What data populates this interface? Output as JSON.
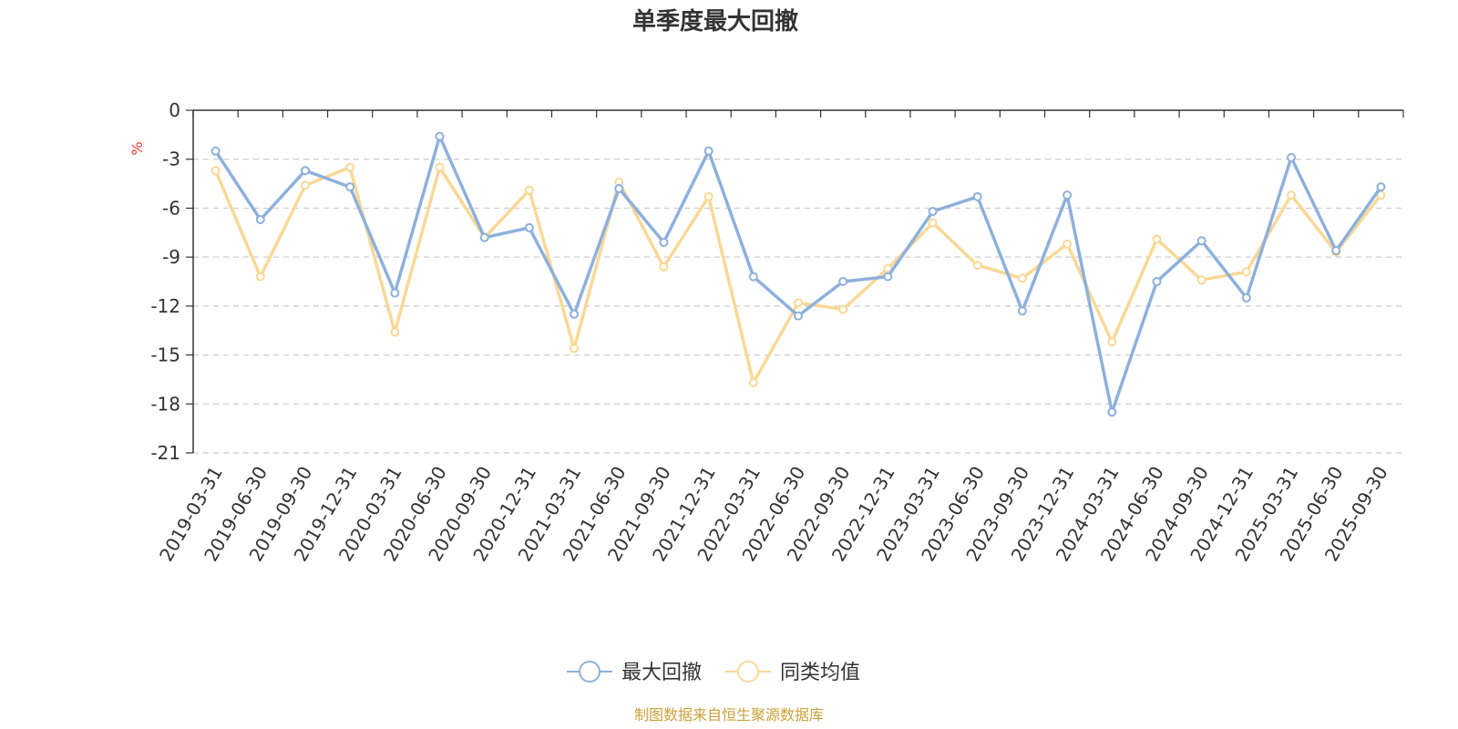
{
  "chart_data": {
    "type": "line",
    "title": "单季度最大回撤",
    "unit": "%",
    "ylim": [
      -21,
      0
    ],
    "yticks": [
      0,
      -3,
      -6,
      -9,
      -12,
      -15,
      -18,
      -21
    ],
    "grid": true,
    "legend_position": "bottom",
    "categories": [
      "2019-03-31",
      "2019-06-30",
      "2019-09-30",
      "2019-12-31",
      "2020-03-31",
      "2020-06-30",
      "2020-09-30",
      "2020-12-31",
      "2021-03-31",
      "2021-06-30",
      "2021-09-30",
      "2021-12-31",
      "2022-03-31",
      "2022-06-30",
      "2022-09-30",
      "2022-12-31",
      "2023-03-31",
      "2023-06-30",
      "2023-09-30",
      "2023-12-31",
      "2024-03-31",
      "2024-06-30",
      "2024-09-30",
      "2024-12-31",
      "2025-03-31",
      "2025-06-30",
      "2025-09-30"
    ],
    "series": [
      {
        "name": "最大回撤",
        "color": "#8eb0dc",
        "values": [
          -2.5,
          -6.7,
          -3.7,
          -4.7,
          -11.2,
          -1.6,
          -7.8,
          -7.2,
          -12.5,
          -4.8,
          -8.1,
          -2.5,
          -10.2,
          -12.6,
          -10.5,
          -10.2,
          -6.2,
          -5.3,
          -12.3,
          -5.2,
          -18.5,
          -10.5,
          -8.0,
          -11.5,
          -2.9,
          -8.6,
          -4.7
        ]
      },
      {
        "name": "同类均值",
        "color": "#f9d897",
        "values": [
          -3.7,
          -10.2,
          -4.6,
          -3.5,
          -13.6,
          -3.5,
          -7.8,
          -4.9,
          -14.6,
          -4.4,
          -9.6,
          -5.3,
          -16.7,
          -11.8,
          -12.2,
          -9.7,
          -6.9,
          -9.5,
          -10.3,
          -8.2,
          -14.2,
          -7.9,
          -10.4,
          -9.9,
          -5.2,
          -8.7,
          -5.2
        ]
      }
    ]
  },
  "footer": {
    "source_text": "制图数据来自恒生聚源数据库"
  }
}
